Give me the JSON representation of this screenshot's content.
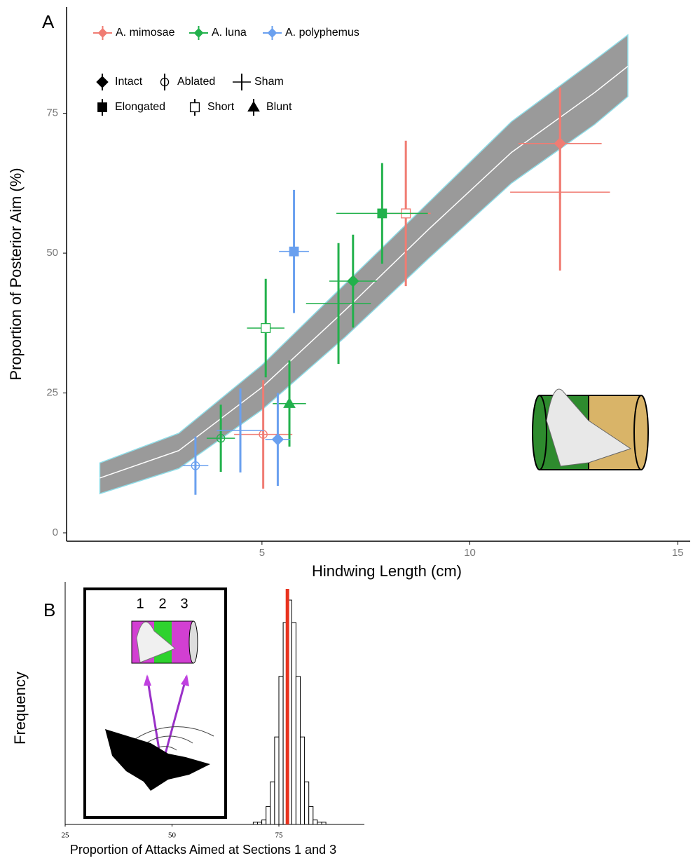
{
  "chart_data": [
    {
      "type": "scatter",
      "panel_label": "A",
      "x_label": "Hindwing Length (cm)",
      "y_label": "Proportion of Posterior Aim (%)",
      "xlim": [
        0.3,
        15.3
      ],
      "xticks": [
        5,
        10,
        15
      ],
      "ylim": [
        -1.5,
        94
      ],
      "yticks": [
        0,
        25,
        50,
        75
      ],
      "treatments": [
        "Intact",
        "Ablated",
        "Sham",
        "Elongated",
        "Short",
        "Blunt"
      ],
      "fit": {
        "color": "#9a9a9a",
        "edge_color": "#8fdde8",
        "x": [
          1.1,
          3,
          5,
          7,
          9,
          11,
          13,
          13.8
        ],
        "values": [
          9.8,
          14.7,
          26,
          39.8,
          54.2,
          68,
          78.7,
          83.4
        ],
        "lower": [
          7,
          11.5,
          22,
          35,
          49,
          62.5,
          73,
          78
        ],
        "upper": [
          12.5,
          17.8,
          30,
          44.5,
          59,
          73.5,
          84.5,
          89
        ]
      },
      "series": [
        {
          "name": "A. mimosae",
          "color": "#f07c73",
          "treatment": [
            "Intact",
            "Sham",
            "Short",
            "Ablated"
          ],
          "x": [
            12.17,
            12.17,
            8.46,
            5.03
          ],
          "values": [
            69.6,
            60.9,
            57.1,
            17.6
          ],
          "xerr": [
            1.0,
            1.2,
            0.6,
            0.7
          ],
          "yerr": [
            10,
            14,
            13,
            9.7
          ]
        },
        {
          "name": "A. luna",
          "color": "#22b14c",
          "treatment": [
            "Elongated",
            "Intact",
            "Sham",
            "Short",
            "Blunt",
            "Ablated"
          ],
          "x": [
            7.89,
            7.19,
            6.84,
            5.09,
            5.66,
            4.01
          ],
          "values": [
            57.1,
            45,
            41,
            36.6,
            23.1,
            16.9
          ],
          "xerr": [
            1.1,
            0.57,
            0.78,
            0.45,
            0.4,
            0.34
          ],
          "yerr": [
            9,
            8.3,
            10.8,
            8.8,
            7.7,
            6
          ]
        },
        {
          "name": "A. polyphemus",
          "color": "#6aa0ef",
          "treatment": [
            "Elongated",
            "Intact",
            "Sham",
            "Ablated"
          ],
          "x": [
            5.77,
            5.38,
            4.48,
            3.4
          ],
          "values": [
            50.3,
            16.7,
            18.3,
            12
          ],
          "xerr": [
            0.36,
            0.3,
            0.57,
            0.31
          ],
          "yerr": [
            11,
            8.3,
            7.5,
            5.2
          ]
        }
      ]
    },
    {
      "type": "histogram",
      "panel_label": "B",
      "x_label": "Proportion of Attacks Aimed at Sections 1 and 3",
      "y_label": "Frequency",
      "inset_labels": [
        "1",
        "2",
        "3"
      ],
      "xlim": [
        25,
        95
      ],
      "xticks": [
        25,
        50,
        75
      ],
      "ylim": [
        0,
        105
      ],
      "bins": [
        69,
        70,
        71,
        72,
        73,
        74,
        75,
        76,
        77,
        78,
        79,
        80,
        81,
        82,
        83,
        84,
        85,
        86,
        87,
        88,
        89
      ],
      "values": [
        1,
        1,
        2,
        8,
        19,
        39,
        66,
        90,
        100,
        90,
        66,
        39,
        19,
        8,
        2,
        1,
        1,
        0,
        0,
        0
      ],
      "color": "#ffffff",
      "reference_value": 77,
      "reference_color": "#e8321e"
    }
  ]
}
